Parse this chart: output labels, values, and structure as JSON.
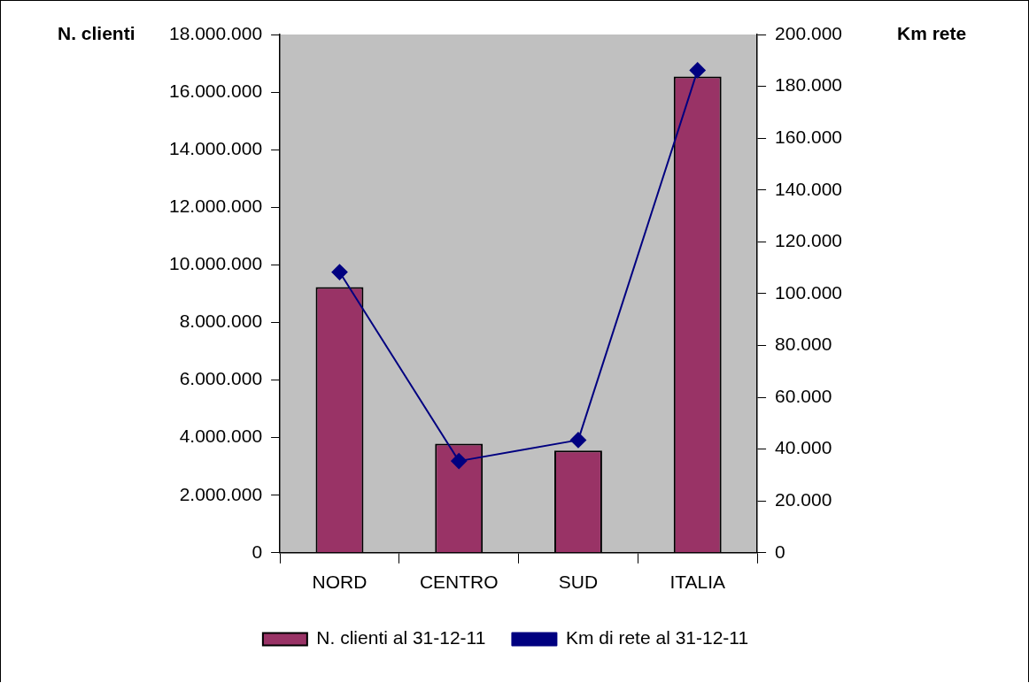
{
  "chart_data": {
    "type": "bar",
    "categories": [
      "NORD",
      "CENTRO",
      "SUD",
      "ITALIA"
    ],
    "ylabel": "N. clienti",
    "y2label": "Km rete",
    "series": [
      {
        "name": "N. clienti al 31-12-11",
        "color": "#993366",
        "values": [
          9230000,
          3790000,
          3550000,
          16540000
        ]
      },
      {
        "name": "Km di rete al 31-12-11",
        "type": "line",
        "axis": "y2",
        "color": "#000080",
        "values": [
          108300,
          35400,
          43500,
          186200
        ]
      }
    ],
    "ylim": [
      0,
      18000000
    ],
    "yticks": [
      0,
      {
        "value": 2000000,
        "label": "2.000.000"
      },
      {
        "value": 4000000,
        "label": "4.000.000"
      },
      {
        "value": 6000000,
        "label": "6.000.000"
      },
      {
        "value": 8000000,
        "label": "8.000.000"
      },
      {
        "value": 10000000,
        "label": "10.000.000"
      },
      {
        "value": 12000000,
        "label": "12.000.000"
      },
      {
        "value": 14000000,
        "label": "14.000.000"
      },
      {
        "value": 16000000,
        "label": "16.000.000"
      },
      {
        "value": 18000000,
        "label": "18.000.000"
      }
    ],
    "y2lim": [
      0,
      200000
    ],
    "y2ticks": [
      0,
      {
        "value": 20000,
        "label": "20.000"
      },
      {
        "value": 40000,
        "label": "40.000"
      },
      {
        "value": 60000,
        "label": "60.000"
      },
      {
        "value": 80000,
        "label": "80.000"
      },
      {
        "value": 100000,
        "label": "100.000"
      },
      {
        "value": 120000,
        "label": "120.000"
      },
      {
        "value": 140000,
        "label": "140.000"
      },
      {
        "value": 160000,
        "label": "160.000"
      },
      {
        "value": 180000,
        "label": "180.000"
      },
      {
        "value": 200000,
        "label": "200.000"
      }
    ],
    "grid": false,
    "legend": "bottom",
    "marker": "diamond",
    "line_style": "solid"
  }
}
